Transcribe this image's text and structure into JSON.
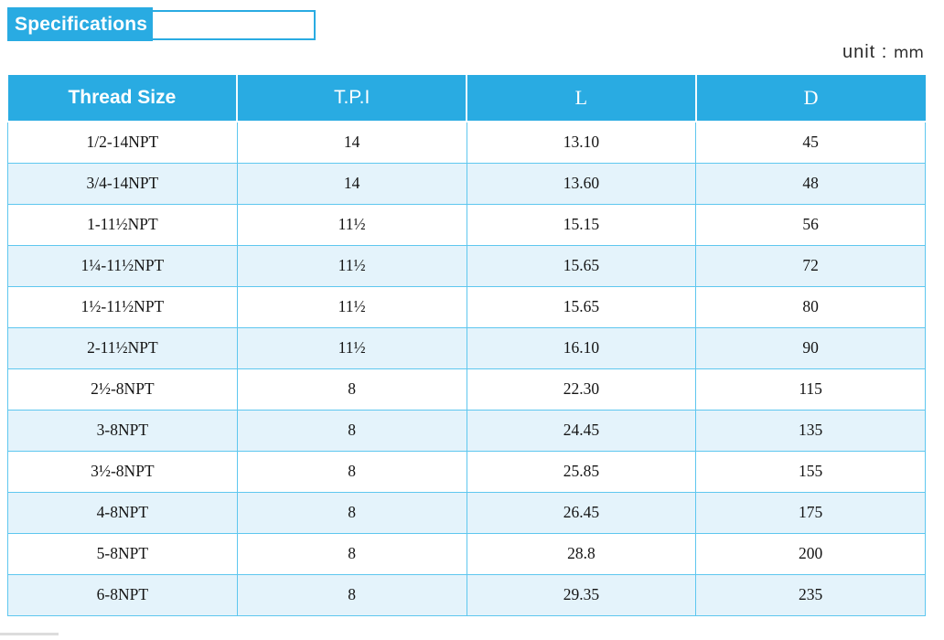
{
  "title_badge": {
    "label": "Specifications"
  },
  "unit_note": {
    "prefix": "unit :",
    "value": "mm"
  },
  "table": {
    "headers": [
      "Thread Size",
      "T.P.I",
      "L",
      "D"
    ],
    "rows": [
      [
        "1/2-14NPT",
        "14",
        "13.10",
        "45"
      ],
      [
        "3/4-14NPT",
        "14",
        "13.60",
        "48"
      ],
      [
        "1-11½NPT",
        "11½",
        "15.15",
        "56"
      ],
      [
        "1¼-11½NPT",
        "11½",
        "15.65",
        "72"
      ],
      [
        "1½-11½NPT",
        "11½",
        "15.65",
        "80"
      ],
      [
        "2-11½NPT",
        "11½",
        "16.10",
        "90"
      ],
      [
        "2½-8NPT",
        "8",
        "22.30",
        "115"
      ],
      [
        "3-8NPT",
        "8",
        "24.45",
        "135"
      ],
      [
        "3½-8NPT",
        "8",
        "25.85",
        "155"
      ],
      [
        "4-8NPT",
        "8",
        "26.45",
        "175"
      ],
      [
        "5-8NPT",
        "8",
        "28.8",
        "200"
      ],
      [
        "6-8NPT",
        "8",
        "29.35",
        "235"
      ]
    ]
  },
  "colors": {
    "accent": "#29abe2",
    "row_alt": "#e4f3fb",
    "cell_border": "#5ec7ef",
    "text": "#141414"
  }
}
